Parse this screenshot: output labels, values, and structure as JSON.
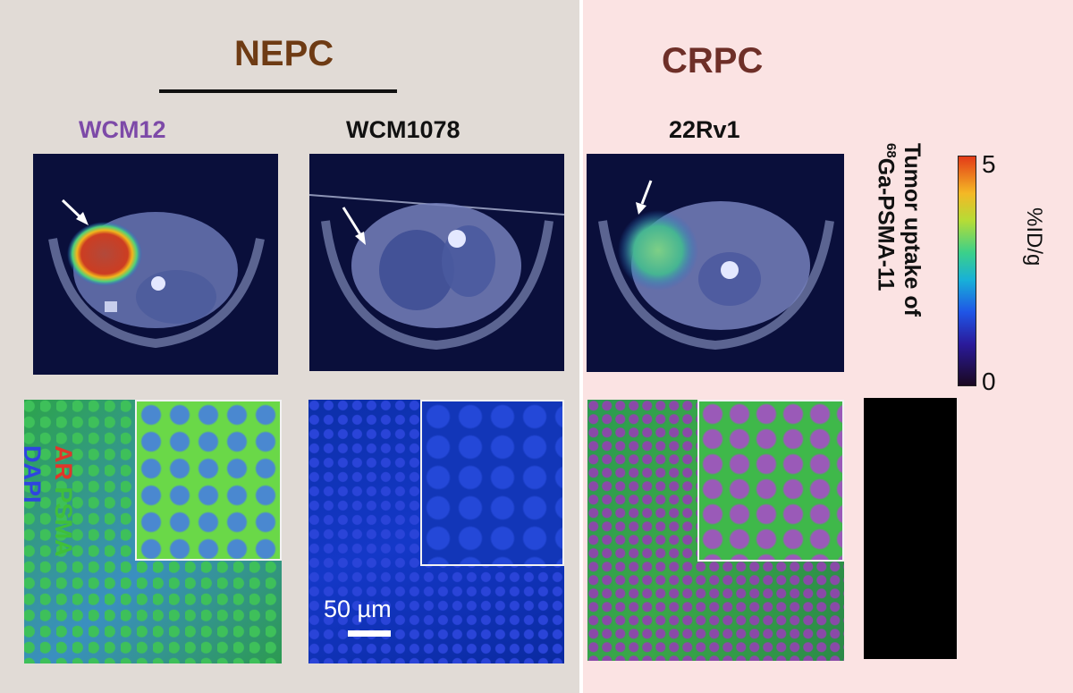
{
  "groups": {
    "left": "NEPC",
    "right": "CRPC"
  },
  "models": [
    "WCM12",
    "WCM1078",
    "22Rv1"
  ],
  "colorbar": {
    "max": "5",
    "min": "0",
    "unit": "%ID/g",
    "label_line1": "Tumor uptake of",
    "label_sup": "68",
    "label_line2": "Ga-PSMA-11"
  },
  "stain_legend": {
    "ar": "AR",
    "psma": "PSMA",
    "dapi": "DAPI"
  },
  "scale_bar": "50 µm",
  "colors": {
    "nepc": "#6e3b14",
    "crpc": "#6e2f28",
    "wcm12": "#7d4aa8",
    "ar": "#e0362a",
    "psma": "#3fbf3a",
    "dapi": "#2f44e0"
  },
  "icons": [
    "arrow-icon"
  ]
}
